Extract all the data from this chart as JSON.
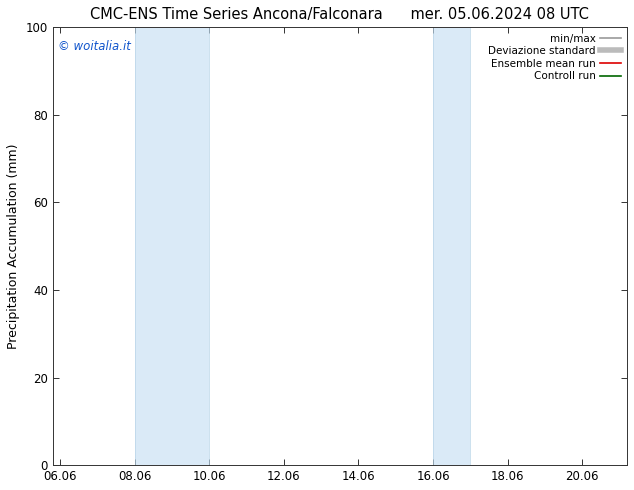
{
  "title_left": "CMC-ENS Time Series Ancona/Falconara",
  "title_right": "mer. 05.06.2024 08 UTC",
  "ylabel": "Precipitation Accumulation (mm)",
  "ylim": [
    0,
    100
  ],
  "yticks": [
    0,
    20,
    40,
    60,
    80,
    100
  ],
  "xtick_labels": [
    "06.06",
    "08.06",
    "10.06",
    "12.06",
    "14.06",
    "16.06",
    "18.06",
    "20.06"
  ],
  "xtick_positions": [
    0,
    2,
    4,
    6,
    8,
    10,
    12,
    14
  ],
  "xlim": [
    -0.2,
    15.2
  ],
  "shaded_bands": [
    {
      "xstart": 2,
      "xend": 4,
      "label": "08.06-10.06"
    },
    {
      "xstart": 10,
      "xend": 11,
      "label": "16.06-17.06"
    }
  ],
  "shaded_color": "#daeaf7",
  "shaded_edge_color": "#b8d4e8",
  "copyright_text": "© woitalia.it",
  "copyright_color": "#1155cc",
  "legend_entries": [
    {
      "label": "min/max",
      "color": "#999999",
      "lw": 1.2,
      "style": "solid"
    },
    {
      "label": "Deviazione standard",
      "color": "#bbbbbb",
      "lw": 4.0,
      "style": "solid"
    },
    {
      "label": "Ensemble mean run",
      "color": "#dd0000",
      "lw": 1.2,
      "style": "solid"
    },
    {
      "label": "Controll run",
      "color": "#006600",
      "lw": 1.2,
      "style": "solid"
    }
  ],
  "bg_color": "#ffffff",
  "title_fontsize": 10.5,
  "tick_fontsize": 8.5,
  "ylabel_fontsize": 9,
  "copyright_fontsize": 8.5,
  "legend_fontsize": 7.5
}
